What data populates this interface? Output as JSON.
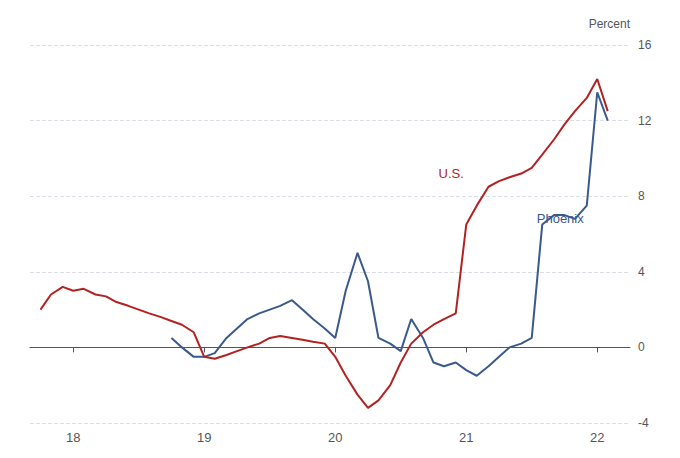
{
  "chart_data": {
    "type": "line",
    "y_label": "Percent",
    "xlim": [
      2017.67,
      2022.25
    ],
    "xticks": [
      {
        "value": 2018,
        "label": "18"
      },
      {
        "value": 2019,
        "label": "19"
      },
      {
        "value": 2020,
        "label": "20"
      },
      {
        "value": 2021,
        "label": "21"
      },
      {
        "value": 2022,
        "label": "22"
      }
    ],
    "ylim": [
      -4,
      16
    ],
    "yticks": [
      -4,
      0,
      4,
      8,
      12,
      16
    ],
    "grid": true,
    "series": [
      {
        "name": "Phoenix",
        "color": "#3a5a8c",
        "x": [
          2018.75,
          2018.83,
          2018.92,
          2019.0,
          2019.08,
          2019.17,
          2019.25,
          2019.33,
          2019.42,
          2019.5,
          2019.58,
          2019.67,
          2019.75,
          2019.83,
          2019.92,
          2020.0,
          2020.08,
          2020.17,
          2020.25,
          2020.33,
          2020.42,
          2020.5,
          2020.58,
          2020.67,
          2020.75,
          2020.83,
          2020.92,
          2021.0,
          2021.08,
          2021.17,
          2021.25,
          2021.33,
          2021.42,
          2021.5,
          2021.58,
          2021.67,
          2021.75,
          2021.83,
          2021.92,
          2022.0,
          2022.08
        ],
        "values": [
          0.5,
          0.0,
          -0.5,
          -0.5,
          -0.3,
          0.5,
          1.0,
          1.5,
          1.8,
          2.0,
          2.2,
          2.5,
          2.0,
          1.5,
          1.0,
          0.5,
          3.0,
          5.0,
          3.5,
          0.5,
          0.2,
          -0.2,
          1.5,
          0.5,
          -0.8,
          -1.0,
          -0.8,
          -1.2,
          -1.5,
          -1.0,
          -0.5,
          0.0,
          0.2,
          0.5,
          6.5,
          7.0,
          7.0,
          6.8,
          7.5,
          13.5,
          12.0
        ]
      },
      {
        "name": "U.S.",
        "color": "#b22222",
        "x": [
          2017.75,
          2017.83,
          2017.92,
          2018.0,
          2018.08,
          2018.17,
          2018.25,
          2018.33,
          2018.42,
          2018.5,
          2018.58,
          2018.67,
          2018.75,
          2018.83,
          2018.92,
          2019.0,
          2019.08,
          2019.17,
          2019.25,
          2019.33,
          2019.42,
          2019.5,
          2019.58,
          2019.67,
          2019.75,
          2019.83,
          2019.92,
          2020.0,
          2020.08,
          2020.17,
          2020.25,
          2020.33,
          2020.42,
          2020.5,
          2020.58,
          2020.67,
          2020.75,
          2020.83,
          2020.92,
          2021.0,
          2021.08,
          2021.17,
          2021.25,
          2021.33,
          2021.42,
          2021.5,
          2021.58,
          2021.67,
          2021.75,
          2021.83,
          2021.92,
          2022.0,
          2022.08
        ],
        "values": [
          2.0,
          2.8,
          3.2,
          3.0,
          3.1,
          2.8,
          2.7,
          2.4,
          2.2,
          2.0,
          1.8,
          1.6,
          1.4,
          1.2,
          0.8,
          -0.5,
          -0.6,
          -0.4,
          -0.2,
          0.0,
          0.2,
          0.5,
          0.6,
          0.5,
          0.4,
          0.3,
          0.2,
          -0.5,
          -1.5,
          -2.5,
          -3.2,
          -2.8,
          -2.0,
          -0.8,
          0.2,
          0.8,
          1.2,
          1.5,
          1.8,
          6.5,
          7.5,
          8.5,
          8.8,
          9.0,
          9.2,
          9.5,
          10.2,
          11.0,
          11.8,
          12.5,
          13.2,
          14.2,
          12.5
        ]
      }
    ],
    "annotations": [
      {
        "text": "U.S.",
        "x": 2020.75,
        "y": 9.2,
        "color": "#b22222"
      },
      {
        "text": "Phoenix",
        "x": 2021.5,
        "y": 6.8,
        "color": "#3a5a8c"
      }
    ]
  }
}
